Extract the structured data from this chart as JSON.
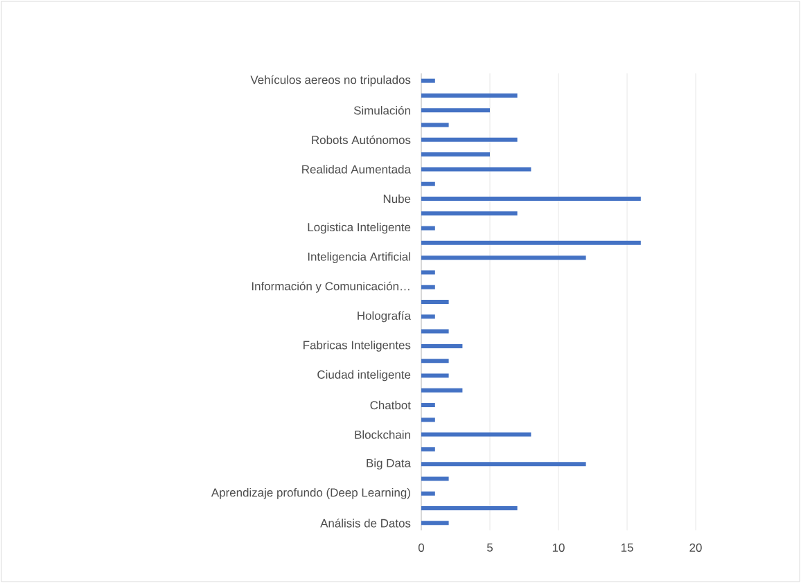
{
  "chart_data": {
    "type": "bar",
    "orientation": "horizontal",
    "grid": "x",
    "color": "#4472c4",
    "categories": [
      "Vehículos aereos no tripulados",
      null,
      "Simulación",
      null,
      "Robots Autónomos",
      null,
      "Realidad Aumentada",
      null,
      "Nube",
      null,
      "Logistica Inteligente",
      null,
      "Inteligencia Artificial",
      null,
      "Información y Comunicación…",
      null,
      "Holografía",
      null,
      "Fabricas Inteligentes",
      null,
      "Ciudad inteligente",
      null,
      "Chatbot",
      null,
      "Blockchain",
      null,
      "Big Data",
      null,
      "Aprendizaje profundo (Deep Learning)",
      null,
      "Análisis de Datos"
    ],
    "values": [
      1,
      7,
      5,
      2,
      7,
      5,
      8,
      1,
      16,
      7,
      1,
      16,
      12,
      1,
      1,
      2,
      1,
      2,
      3,
      2,
      2,
      3,
      1,
      1,
      8,
      1,
      12,
      2,
      1,
      7,
      2
    ],
    "xlim": [
      0,
      20
    ],
    "xticks": [
      0,
      5,
      10,
      15,
      20
    ]
  }
}
